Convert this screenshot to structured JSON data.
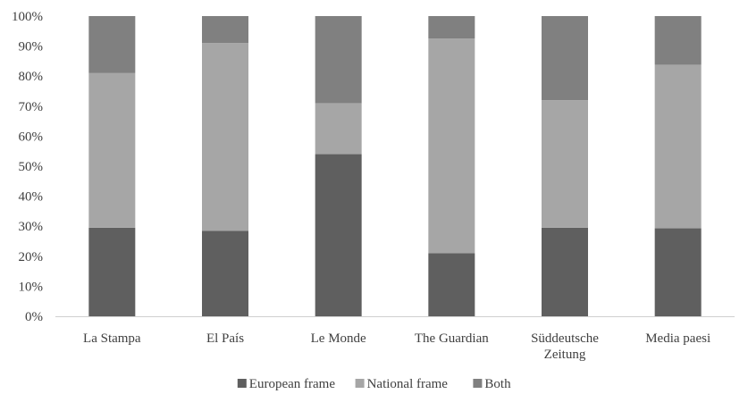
{
  "chart_data": {
    "type": "bar",
    "stacked": true,
    "percent": true,
    "categories": [
      "La Stampa",
      "El País",
      "Le Monde",
      "The Guardian",
      "Süddeutsche Zeitung",
      "Media paesi"
    ],
    "category_lines": [
      [
        "La Stampa"
      ],
      [
        "El País"
      ],
      [
        "Le Monde"
      ],
      [
        "The Guardian"
      ],
      [
        "Süddeutsche",
        "Zeitung"
      ],
      [
        "Media paesi"
      ]
    ],
    "series": [
      {
        "name": "European frame",
        "values": [
          29.5,
          28.5,
          54,
          21,
          29.5,
          29.3
        ],
        "color": "#5f5f5f"
      },
      {
        "name": "National frame",
        "values": [
          51.5,
          62.5,
          17,
          71.5,
          42.5,
          54.5
        ],
        "color": "#a6a6a6"
      },
      {
        "name": "Both",
        "values": [
          19,
          9,
          29,
          7.5,
          28,
          16.2
        ],
        "color": "#808080"
      }
    ],
    "yticks": [
      "0%",
      "10%",
      "20%",
      "30%",
      "40%",
      "50%",
      "60%",
      "70%",
      "80%",
      "90%",
      "100%"
    ],
    "ylim": [
      0,
      100
    ],
    "legend_position": "bottom",
    "grid": false
  }
}
